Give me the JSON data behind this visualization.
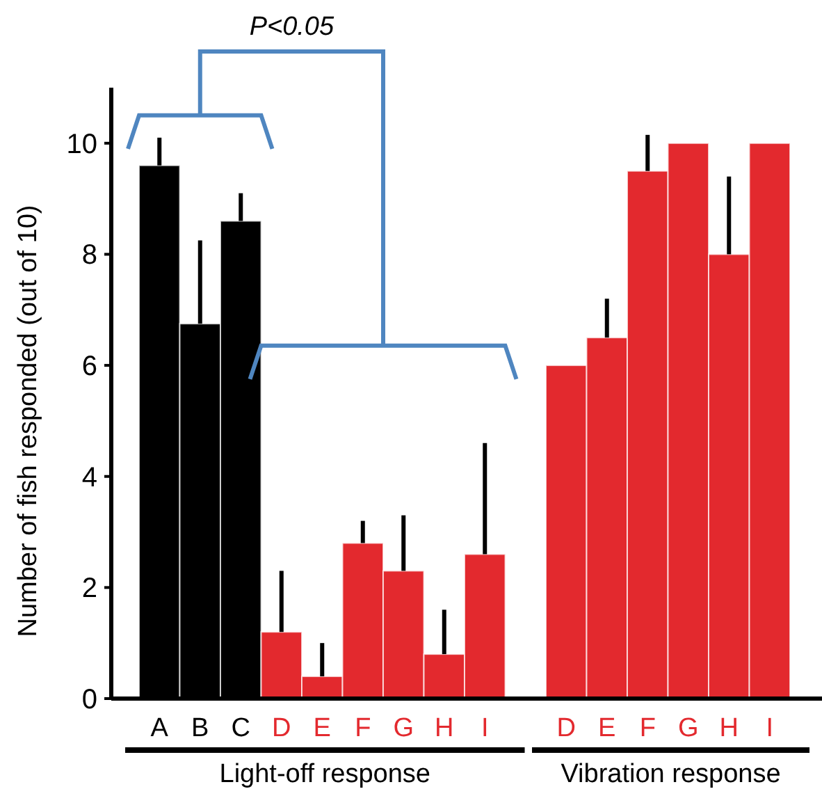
{
  "chart_data": {
    "type": "bar",
    "ylabel": "Number of fish responded (out of 10)",
    "categories": [
      "A",
      "B",
      "C",
      "D",
      "E",
      "F",
      "G",
      "H",
      "I",
      null,
      "D",
      "E",
      "F",
      "G",
      "H",
      "I"
    ],
    "values": [
      9.6,
      6.75,
      8.6,
      1.2,
      0.4,
      2.8,
      2.3,
      0.8,
      2.6,
      null,
      6.0,
      6.5,
      9.5,
      10,
      8,
      10
    ],
    "colors": [
      "#000000",
      "#000000",
      "#000000",
      "#e3292e",
      "#e3292e",
      "#e3292e",
      "#e3292e",
      "#e3292e",
      "#e3292e",
      null,
      "#e3292e",
      "#e3292e",
      "#e3292e",
      "#e3292e",
      "#e3292e",
      "#e3292e"
    ],
    "errors": [
      [
        9.6,
        10.1
      ],
      [
        6.75,
        8.25
      ],
      [
        8.6,
        9.1
      ],
      [
        1.2,
        2.3
      ],
      [
        0.4,
        1.0
      ],
      [
        2.8,
        3.2
      ],
      [
        2.3,
        3.3
      ],
      [
        0.8,
        1.6
      ],
      [
        2.6,
        4.6
      ],
      null,
      null,
      [
        6.5,
        7.2
      ],
      [
        9.5,
        10.15
      ],
      null,
      [
        8,
        9.4
      ],
      null
    ],
    "ylim": [
      0,
      11
    ],
    "yticks": [
      0,
      2,
      4,
      6,
      8,
      10
    ],
    "grid": false,
    "annotations": [
      "P<0.05",
      "Light-off response",
      "Vibration response"
    ]
  }
}
